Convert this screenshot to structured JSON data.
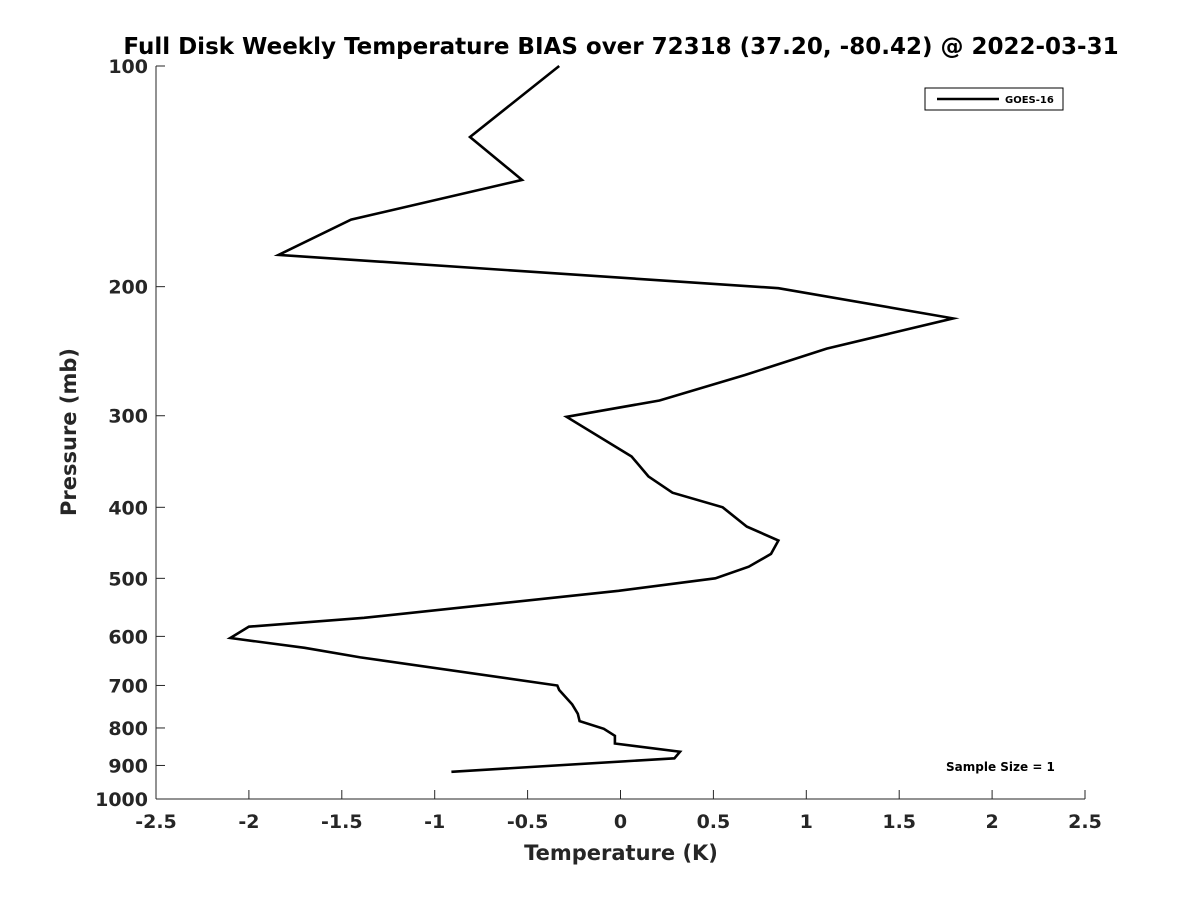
{
  "chart_data": {
    "type": "line",
    "title": "Full Disk Weekly Temperature BIAS over 72318 (37.20, -80.42) @ 2022-03-31",
    "xlabel": "Temperature (K)",
    "ylabel": "Pressure (mb)",
    "xlim": [
      -2.5,
      2.5
    ],
    "ylim": [
      100,
      1000
    ],
    "y_scale": "log",
    "y_reversed": true,
    "x_ticks": [
      -2.5,
      -2,
      -1.5,
      -1,
      -0.5,
      0,
      0.5,
      1,
      1.5,
      2,
      2.5
    ],
    "x_tick_labels": [
      "-2.5",
      "-2",
      "-1.5",
      "-1",
      "-0.5",
      "0",
      "0.5",
      "1",
      "1.5",
      "2",
      "2.5"
    ],
    "y_ticks": [
      100,
      200,
      300,
      400,
      500,
      600,
      700,
      800,
      900,
      1000
    ],
    "y_tick_labels": [
      "100",
      "200",
      "300",
      "400",
      "500",
      "600",
      "700",
      "800",
      "900",
      "1000"
    ],
    "grid": false,
    "legend_position": "top-right",
    "series": [
      {
        "name": "GOES-16",
        "color": "#000000",
        "points": [
          [
            -0.33,
            100
          ],
          [
            -0.81,
            125
          ],
          [
            -0.53,
            143
          ],
          [
            -1.45,
            162
          ],
          [
            -1.84,
            181
          ],
          [
            0.85,
            201
          ],
          [
            1.79,
            221
          ],
          [
            1.11,
            243
          ],
          [
            0.67,
            264
          ],
          [
            0.21,
            286
          ],
          [
            -0.29,
            301
          ],
          [
            0.06,
            341
          ],
          [
            0.15,
            363
          ],
          [
            0.28,
            382
          ],
          [
            0.55,
            400
          ],
          [
            0.68,
            425
          ],
          [
            0.85,
            444
          ],
          [
            0.81,
            463
          ],
          [
            0.69,
            482
          ],
          [
            0.51,
            500
          ],
          [
            -0.01,
            520
          ],
          [
            -1.38,
            566
          ],
          [
            -2.0,
            582
          ],
          [
            -2.1,
            603
          ],
          [
            -1.7,
            622
          ],
          [
            -1.4,
            641
          ],
          [
            -0.34,
            700
          ],
          [
            -0.33,
            710
          ],
          [
            -0.26,
            743
          ],
          [
            -0.23,
            765
          ],
          [
            -0.22,
            783
          ],
          [
            -0.09,
            802
          ],
          [
            -0.03,
            820
          ],
          [
            -0.03,
            840
          ],
          [
            0.32,
            862
          ],
          [
            0.29,
            880
          ],
          [
            -0.91,
            918
          ]
        ]
      }
    ],
    "annotation": "Sample Size = 1"
  }
}
